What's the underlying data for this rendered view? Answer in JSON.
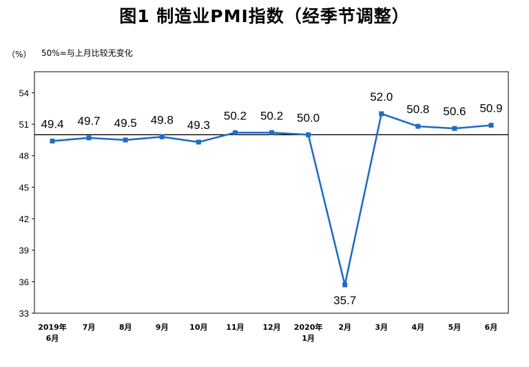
{
  "header": {
    "title": "图1  制造业PMI指数（经季节调整）",
    "unit": "（%）",
    "note": "50%=与上月比较无变化"
  },
  "chart_data": {
    "type": "line",
    "title": "图1  制造业PMI指数（经季节调整）",
    "xlabel": "",
    "ylabel": "（%）",
    "ylim": [
      33,
      56
    ],
    "yticks": [
      33,
      36,
      39,
      42,
      45,
      48,
      51,
      54
    ],
    "reference_line": 50,
    "grid": false,
    "legend": "none",
    "line_color": "#1f6cc4",
    "categories": [
      [
        "2019年",
        "6月"
      ],
      [
        "7月"
      ],
      [
        "8月"
      ],
      [
        "9月"
      ],
      [
        "10月"
      ],
      [
        "11月"
      ],
      [
        "12月"
      ],
      [
        "2020年",
        "1月"
      ],
      [
        "2月"
      ],
      [
        "3月"
      ],
      [
        "4月"
      ],
      [
        "5月"
      ],
      [
        "6月"
      ]
    ],
    "series": [
      {
        "values": [
          49.4,
          49.7,
          49.5,
          49.8,
          49.3,
          50.2,
          50.2,
          50.0,
          35.7,
          52.0,
          50.8,
          50.6,
          50.9
        ],
        "labels": [
          "49.4",
          "49.7",
          "49.5",
          "49.8",
          "49.3",
          "50.2",
          "50.2",
          "50.0",
          "35.7",
          "52.0",
          "50.8",
          "50.6",
          "50.9"
        ]
      }
    ]
  }
}
